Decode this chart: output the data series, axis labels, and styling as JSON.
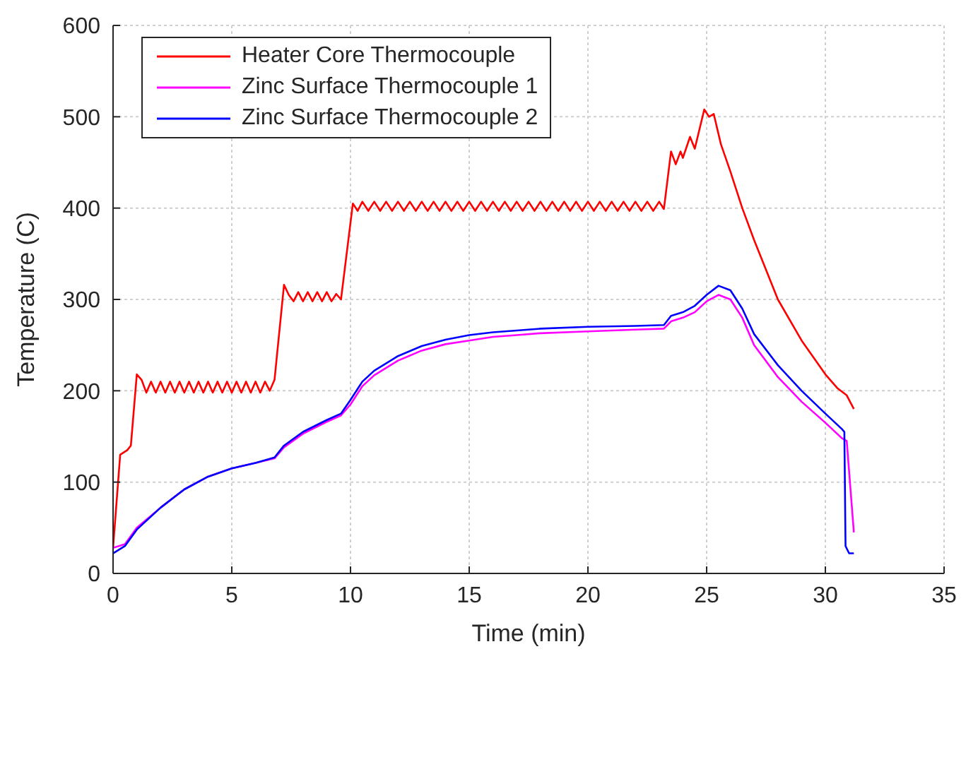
{
  "chart_data": {
    "type": "line",
    "xlabel": "Time (min)",
    "ylabel": "Temperature (C)",
    "xlim": [
      0,
      35
    ],
    "xticks": [
      0,
      5,
      10,
      15,
      20,
      25,
      30,
      35
    ],
    "ylim": [
      0,
      600
    ],
    "yticks": [
      0,
      100,
      200,
      300,
      400,
      500,
      600
    ],
    "grid": true,
    "legend": "top left",
    "marker": "none",
    "line_style": "solid",
    "series": [
      {
        "name": "Heater Core Thermocouple",
        "color": "#ff0000",
        "x": [
          0,
          0.3,
          0.6,
          0.75,
          1.0,
          1.2,
          1.4,
          1.6,
          1.8,
          2.0,
          2.2,
          2.4,
          2.6,
          2.8,
          3.0,
          3.2,
          3.4,
          3.6,
          3.8,
          4.0,
          4.2,
          4.4,
          4.6,
          4.8,
          5.0,
          5.2,
          5.4,
          5.6,
          5.8,
          6.0,
          6.2,
          6.4,
          6.6,
          6.8,
          7.2,
          7.4,
          7.6,
          7.8,
          8.0,
          8.2,
          8.4,
          8.6,
          8.8,
          9.0,
          9.2,
          9.4,
          9.6,
          10.1,
          10.3,
          10.5,
          10.75,
          11,
          11.25,
          11.5,
          11.75,
          12,
          12.25,
          12.5,
          12.75,
          13,
          13.25,
          13.5,
          13.75,
          14,
          14.25,
          14.5,
          14.75,
          15,
          15.25,
          15.5,
          15.75,
          16,
          16.25,
          16.5,
          16.75,
          17,
          17.25,
          17.5,
          17.75,
          18,
          18.25,
          18.5,
          18.75,
          19,
          19.25,
          19.5,
          19.75,
          20,
          20.25,
          20.5,
          20.75,
          21,
          21.25,
          21.5,
          21.75,
          22,
          22.25,
          22.5,
          22.75,
          23,
          23.2,
          23.5,
          23.7,
          23.9,
          24.0,
          24.3,
          24.5,
          24.9,
          25.1,
          25.3,
          25.6,
          26,
          26.5,
          27,
          28,
          29,
          30,
          30.5,
          30.9,
          31.2
        ],
        "values": [
          28,
          130,
          135,
          140,
          218,
          212,
          198,
          210,
          198,
          210,
          198,
          210,
          198,
          210,
          198,
          210,
          198,
          210,
          198,
          210,
          198,
          210,
          198,
          210,
          198,
          210,
          198,
          210,
          198,
          210,
          198,
          210,
          200,
          212,
          316,
          305,
          298,
          308,
          298,
          308,
          298,
          308,
          298,
          308,
          298,
          306,
          300,
          405,
          397,
          407,
          397,
          407,
          397,
          407,
          397,
          407,
          397,
          407,
          397,
          407,
          397,
          407,
          397,
          407,
          397,
          407,
          397,
          407,
          397,
          407,
          397,
          407,
          397,
          407,
          397,
          407,
          397,
          407,
          397,
          407,
          397,
          407,
          397,
          407,
          397,
          407,
          397,
          407,
          397,
          407,
          397,
          407,
          397,
          407,
          397,
          407,
          397,
          407,
          397,
          407,
          399,
          462,
          448,
          462,
          455,
          478,
          465,
          508,
          500,
          503,
          470,
          440,
          400,
          365,
          300,
          255,
          218,
          203,
          195,
          180
        ]
      },
      {
        "name": "Zinc Surface Thermocouple 1",
        "color": "#ff00ff",
        "x": [
          0,
          0.5,
          1,
          2,
          3,
          4,
          5,
          6,
          6.8,
          7.2,
          8,
          9,
          9.6,
          10,
          10.5,
          11,
          12,
          13,
          14,
          15,
          16,
          17,
          18,
          20,
          22,
          23.2,
          23.5,
          24,
          24.5,
          25,
          25.5,
          26,
          26.5,
          27,
          28,
          29,
          30,
          30.7,
          30.9,
          31.2
        ],
        "values": [
          28,
          32,
          50,
          72,
          92,
          106,
          115,
          121,
          126,
          138,
          153,
          166,
          173,
          185,
          205,
          217,
          233,
          244,
          251,
          255,
          259,
          261,
          263,
          265,
          267,
          268,
          276,
          280,
          286,
          298,
          305,
          300,
          280,
          250,
          215,
          188,
          165,
          148,
          145,
          45
        ]
      },
      {
        "name": "Zinc Surface Thermocouple 2",
        "color": "#0000ff",
        "x": [
          0,
          0.5,
          1,
          2,
          3,
          4,
          5,
          6,
          6.8,
          7.2,
          8,
          9,
          9.6,
          10,
          10.5,
          11,
          12,
          13,
          14,
          15,
          16,
          17,
          18,
          20,
          22,
          23.2,
          23.5,
          24,
          24.5,
          25,
          25.5,
          26,
          26.5,
          27,
          28,
          29,
          30,
          30.7,
          30.8,
          30.85,
          31,
          31.2
        ],
        "values": [
          22,
          30,
          48,
          72,
          92,
          106,
          115,
          121,
          127,
          140,
          155,
          168,
          175,
          190,
          210,
          222,
          238,
          249,
          256,
          261,
          264,
          266,
          268,
          270,
          271,
          272,
          282,
          286,
          293,
          305,
          315,
          310,
          290,
          262,
          228,
          200,
          175,
          158,
          155,
          30,
          22,
          22
        ]
      }
    ]
  }
}
